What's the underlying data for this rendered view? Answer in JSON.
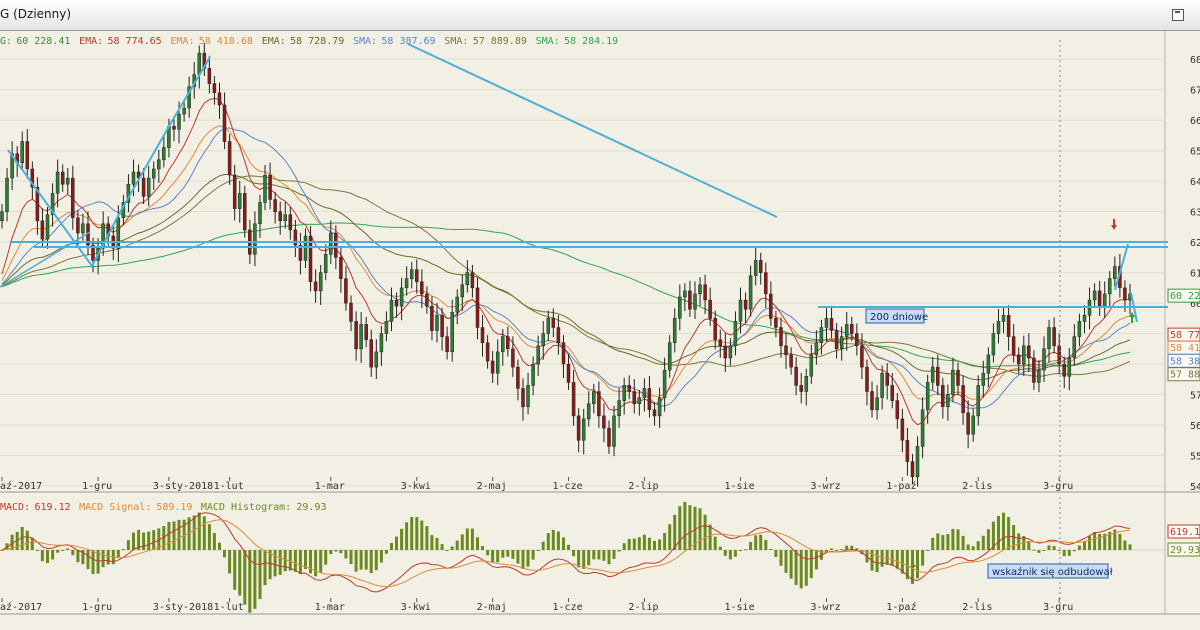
{
  "window": {
    "title": "G (Dzienny)"
  },
  "price_legend": [
    {
      "label": "G:",
      "value": "60 228.41",
      "color": "#3d8a3d"
    },
    {
      "label": "EMA:",
      "value": "58 774.65",
      "color": "#c0392b"
    },
    {
      "label": "EMA:",
      "value": "58 418.68",
      "color": "#e08a3a"
    },
    {
      "label": "EMA:",
      "value": "58 728.79",
      "color": "#6b6b2a"
    },
    {
      "label": "SMA:",
      "value": "58 387.69",
      "color": "#5b86c8"
    },
    {
      "label": "SMA:",
      "value": "57 889.89",
      "color": "#7a7a3a"
    },
    {
      "label": "SMA:",
      "value": "58 284.19",
      "color": "#2ea84f"
    }
  ],
  "macd_legend": [
    {
      "label": "MACD:",
      "value": "619.12",
      "color": "#c0392b"
    },
    {
      "label": "MACD Signal:",
      "value": "589.19",
      "color": "#e08a3a"
    },
    {
      "label": "MACD Histogram:",
      "value": "29.93",
      "color": "#6b8a1e"
    }
  ],
  "right_axis_ticks": [
    "68",
    "67",
    "66",
    "65",
    "64",
    "63",
    "62",
    "61",
    "60",
    "59",
    "58",
    "57",
    "56",
    "55",
    "54"
  ],
  "price_badges": [
    {
      "text": "60 22",
      "color": "#2e9e3e",
      "price": 60228
    },
    {
      "text": "58 77",
      "color": "#c0392b",
      "price": 58950
    },
    {
      "text": "58 41",
      "color": "#e08a3a",
      "price": 58520
    },
    {
      "text": "58 38",
      "color": "#5b86c8",
      "price": 58090
    },
    {
      "text": "57 88",
      "color": "#7a7a3a",
      "price": 57650
    }
  ],
  "macd_badges": [
    {
      "text": "619.1",
      "color": "#c0392b"
    },
    {
      "text": "29.93",
      "color": "#6b8a1e"
    }
  ],
  "annotations": {
    "label_200": "200 dniowe",
    "label_macd": "wskaźnik się odbudował"
  },
  "chart_data": {
    "type": "line",
    "ylim": [
      54000,
      68500
    ],
    "x_tick_labels": [
      {
        "label": "aź-2017",
        "i": 0
      },
      {
        "label": "1-gru",
        "i": 19
      },
      {
        "label": "3-sty-2018",
        "i": 33
      },
      {
        "label": "1-lut",
        "i": 45
      },
      {
        "label": "1-mar",
        "i": 65
      },
      {
        "label": "3-kwi",
        "i": 82
      },
      {
        "label": "2-maj",
        "i": 97
      },
      {
        "label": "1-cze",
        "i": 112
      },
      {
        "label": "2-lip",
        "i": 127
      },
      {
        "label": "1-sie",
        "i": 146
      },
      {
        "label": "3-wrz",
        "i": 163
      },
      {
        "label": "1-paź",
        "i": 178
      },
      {
        "label": "2-lis",
        "i": 193
      },
      {
        "label": "3-gru",
        "i": 209
      }
    ],
    "close": [
      63000,
      64100,
      64900,
      64600,
      65300,
      64400,
      63800,
      62700,
      62100,
      62900,
      63600,
      64300,
      63900,
      64100,
      62800,
      62300,
      62600,
      61900,
      61400,
      61800,
      62600,
      62200,
      61800,
      62800,
      63300,
      63900,
      64300,
      64100,
      63500,
      64100,
      64400,
      64700,
      65100,
      65800,
      65700,
      66200,
      66400,
      67100,
      67500,
      68200,
      67700,
      67200,
      66900,
      66500,
      65300,
      64200,
      63100,
      63600,
      62400,
      61600,
      62600,
      63300,
      64200,
      63400,
      63000,
      62700,
      62900,
      62400,
      61900,
      61400,
      62200,
      60700,
      60400,
      61000,
      61600,
      62300,
      61500,
      60800,
      60000,
      59400,
      58500,
      59300,
      58800,
      57900,
      58400,
      59000,
      59400,
      60100,
      59900,
      60500,
      60800,
      61100,
      60700,
      60300,
      59900,
      59100,
      59600,
      58900,
      58400,
      59700,
      60200,
      60600,
      61000,
      60500,
      59200,
      58700,
      58100,
      57700,
      58400,
      58900,
      58500,
      57900,
      57200,
      56600,
      57300,
      58000,
      58600,
      59000,
      59500,
      59200,
      58700,
      58000,
      57400,
      56300,
      55500,
      56200,
      56700,
      57100,
      56300,
      55900,
      55300,
      56300,
      56800,
      57300,
      57100,
      56700,
      56900,
      57200,
      56500,
      56300,
      56900,
      57800,
      58700,
      59500,
      60200,
      60400,
      59800,
      60300,
      60600,
      60100,
      59500,
      58800,
      58600,
      58200,
      58600,
      59400,
      60100,
      59800,
      60900,
      61400,
      61000,
      60300,
      59500,
      59200,
      58600,
      58300,
      57900,
      57300,
      57100,
      57600,
      58300,
      58700,
      59200,
      59500,
      59100,
      58500,
      58900,
      59300,
      59000,
      58600,
      57900,
      57100,
      56500,
      56900,
      57700,
      57300,
      56800,
      56200,
      55500,
      54800,
      54300,
      55300,
      56500,
      57400,
      57900,
      57300,
      56600,
      57000,
      57800,
      57300,
      56400,
      55700,
      56300,
      57300,
      57700,
      58300,
      59000,
      59400,
      59600,
      58900,
      58300,
      58000,
      58600,
      58200,
      57400,
      57800,
      58500,
      59200,
      58600,
      58000,
      57600,
      58200,
      58900,
      59400,
      59600,
      60100,
      60400,
      59900,
      60300,
      60800,
      61200,
      60500,
      60100,
      60300
    ]
  }
}
